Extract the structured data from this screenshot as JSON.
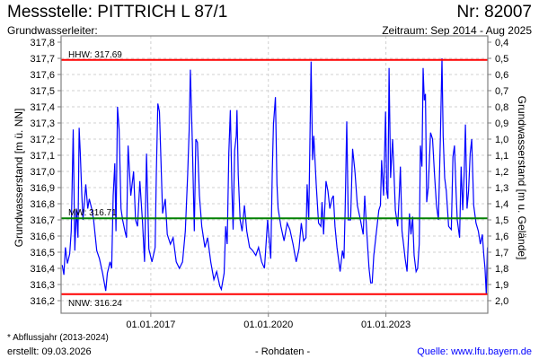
{
  "header": {
    "title": "Messstelle: PITTRICH L 87/1",
    "number": "Nr: 82007",
    "aquifer": "Grundwasserleiter:",
    "period": "Zeitraum: Sep 2014 - Aug 2025"
  },
  "footer": {
    "footnote": "* Abflussjahr (2013-2024)",
    "created": "erstellt:  09.03.2026",
    "raw_data": "- Rohdaten -",
    "source": "Quelle: www.lfu.bayern.de"
  },
  "colors": {
    "series": "#0000ff",
    "extreme": "#ff0000",
    "mean": "#008000",
    "grid": "#d0d0d0",
    "source_link": "#0000ff"
  },
  "chart_data": {
    "type": "line",
    "ylabel": "Grundwasserstand [m ü. NN]",
    "ylabel_right": "Grundwasserstand [m u. Gelände]",
    "ylim": [
      316.2,
      317.8
    ],
    "ylim_right": [
      0.4,
      2.0
    ],
    "xlim": [
      2014.71,
      2025.6
    ],
    "yticks": [
      "317,8",
      "317,7",
      "317,6",
      "317,5",
      "317,4",
      "317,3",
      "317,2",
      "317,1",
      "317,0",
      "316,9",
      "316,8",
      "316,7",
      "316,6",
      "316,5",
      "316,4",
      "316,3",
      "316,2"
    ],
    "yticks_right": [
      "0,4",
      "0,5",
      "0,6",
      "0,7",
      "0,8",
      "0,9",
      "1,0",
      "1,1",
      "1,2",
      "1,3",
      "1,4",
      "1,5",
      "1,6",
      "1,7",
      "1,8",
      "1,9",
      "2,0"
    ],
    "xticks": [
      {
        "x": 2017.0,
        "label": "01.01.2017"
      },
      {
        "x": 2020.0,
        "label": "01.01.2020"
      },
      {
        "x": 2023.0,
        "label": "01.01.2023"
      }
    ],
    "grid": true,
    "reference_lines": [
      {
        "name": "HHW",
        "label": "HHW: 317.69",
        "value": 317.69,
        "color": "#ff0000"
      },
      {
        "name": "MW",
        "label": "MW: 316.71",
        "value": 316.71,
        "color": "#008000"
      },
      {
        "name": "NNW",
        "label": "NNW: 316.24",
        "value": 316.24,
        "color": "#ff0000"
      }
    ],
    "series": [
      {
        "name": "Grundwasserstand",
        "points": [
          [
            2014.74,
            316.42
          ],
          [
            2014.78,
            316.36
          ],
          [
            2014.82,
            316.53
          ],
          [
            2014.87,
            316.43
          ],
          [
            2014.93,
            316.49
          ],
          [
            2014.97,
            316.63
          ],
          [
            2015.02,
            317.26
          ],
          [
            2015.06,
            316.51
          ],
          [
            2015.1,
            316.77
          ],
          [
            2015.14,
            316.59
          ],
          [
            2015.17,
            317.27
          ],
          [
            2015.2,
            317.11
          ],
          [
            2015.24,
            316.85
          ],
          [
            2015.27,
            316.7
          ],
          [
            2015.34,
            316.92
          ],
          [
            2015.39,
            316.77
          ],
          [
            2015.43,
            316.83
          ],
          [
            2015.49,
            316.77
          ],
          [
            2015.54,
            316.7
          ],
          [
            2015.62,
            316.51
          ],
          [
            2015.69,
            316.46
          ],
          [
            2015.77,
            316.37
          ],
          [
            2015.85,
            316.26
          ],
          [
            2015.89,
            316.37
          ],
          [
            2015.96,
            316.44
          ],
          [
            2016.0,
            316.4
          ],
          [
            2016.04,
            316.85
          ],
          [
            2016.08,
            317.05
          ],
          [
            2016.11,
            316.63
          ],
          [
            2016.15,
            317.4
          ],
          [
            2016.19,
            317.26
          ],
          [
            2016.24,
            316.77
          ],
          [
            2016.28,
            316.7
          ],
          [
            2016.34,
            316.63
          ],
          [
            2016.38,
            316.59
          ],
          [
            2016.42,
            317.16
          ],
          [
            2016.49,
            316.85
          ],
          [
            2016.56,
            317.0
          ],
          [
            2016.61,
            316.7
          ],
          [
            2016.66,
            316.66
          ],
          [
            2016.72,
            316.94
          ],
          [
            2016.79,
            316.68
          ],
          [
            2016.84,
            316.44
          ],
          [
            2016.89,
            317.11
          ],
          [
            2016.95,
            316.52
          ],
          [
            2017.03,
            316.44
          ],
          [
            2017.11,
            316.53
          ],
          [
            2017.14,
            316.98
          ],
          [
            2017.18,
            317.42
          ],
          [
            2017.22,
            317.37
          ],
          [
            2017.3,
            316.74
          ],
          [
            2017.37,
            316.83
          ],
          [
            2017.42,
            316.61
          ],
          [
            2017.5,
            316.55
          ],
          [
            2017.57,
            316.59
          ],
          [
            2017.65,
            316.44
          ],
          [
            2017.73,
            316.4
          ],
          [
            2017.81,
            316.44
          ],
          [
            2017.88,
            316.63
          ],
          [
            2017.94,
            316.98
          ],
          [
            2017.98,
            317.26
          ],
          [
            2018.01,
            317.63
          ],
          [
            2018.06,
            317.18
          ],
          [
            2018.11,
            316.63
          ],
          [
            2018.15,
            317.2
          ],
          [
            2018.19,
            317.18
          ],
          [
            2018.24,
            316.85
          ],
          [
            2018.3,
            316.66
          ],
          [
            2018.38,
            316.53
          ],
          [
            2018.45,
            316.59
          ],
          [
            2018.53,
            316.44
          ],
          [
            2018.61,
            316.33
          ],
          [
            2018.68,
            316.38
          ],
          [
            2018.76,
            316.29
          ],
          [
            2018.8,
            316.27
          ],
          [
            2018.87,
            316.37
          ],
          [
            2018.91,
            316.66
          ],
          [
            2018.95,
            316.55
          ],
          [
            2018.99,
            317.11
          ],
          [
            2019.03,
            317.38
          ],
          [
            2019.07,
            316.88
          ],
          [
            2019.1,
            316.64
          ],
          [
            2019.14,
            317.13
          ],
          [
            2019.18,
            317.22
          ],
          [
            2019.2,
            317.38
          ],
          [
            2019.23,
            316.98
          ],
          [
            2019.28,
            316.7
          ],
          [
            2019.33,
            316.63
          ],
          [
            2019.39,
            316.79
          ],
          [
            2019.45,
            316.63
          ],
          [
            2019.52,
            316.53
          ],
          [
            2019.6,
            316.51
          ],
          [
            2019.68,
            316.48
          ],
          [
            2019.75,
            316.53
          ],
          [
            2019.83,
            316.44
          ],
          [
            2019.9,
            316.4
          ],
          [
            2019.98,
            316.7
          ],
          [
            2020.06,
            316.46
          ],
          [
            2020.1,
            317.0
          ],
          [
            2020.13,
            317.29
          ],
          [
            2020.18,
            317.46
          ],
          [
            2020.22,
            316.92
          ],
          [
            2020.25,
            316.77
          ],
          [
            2020.32,
            316.66
          ],
          [
            2020.4,
            316.57
          ],
          [
            2020.48,
            316.68
          ],
          [
            2020.55,
            316.64
          ],
          [
            2020.63,
            316.55
          ],
          [
            2020.71,
            316.44
          ],
          [
            2020.78,
            316.52
          ],
          [
            2020.84,
            316.68
          ],
          [
            2020.9,
            316.57
          ],
          [
            2020.96,
            316.59
          ],
          [
            2020.99,
            316.92
          ],
          [
            2021.03,
            316.7
          ],
          [
            2021.09,
            317.68
          ],
          [
            2021.13,
            317.07
          ],
          [
            2021.16,
            317.22
          ],
          [
            2021.22,
            316.92
          ],
          [
            2021.28,
            316.68
          ],
          [
            2021.34,
            316.66
          ],
          [
            2021.37,
            316.81
          ],
          [
            2021.41,
            316.61
          ],
          [
            2021.47,
            316.94
          ],
          [
            2021.52,
            316.88
          ],
          [
            2021.57,
            316.77
          ],
          [
            2021.62,
            316.83
          ],
          [
            2021.66,
            316.85
          ],
          [
            2021.7,
            316.66
          ],
          [
            2021.75,
            316.53
          ],
          [
            2021.83,
            316.38
          ],
          [
            2021.89,
            316.51
          ],
          [
            2021.93,
            316.46
          ],
          [
            2021.96,
            316.76
          ],
          [
            2022.0,
            317.31
          ],
          [
            2022.04,
            316.7
          ],
          [
            2022.1,
            316.7
          ],
          [
            2022.15,
            317.14
          ],
          [
            2022.21,
            317.0
          ],
          [
            2022.27,
            316.79
          ],
          [
            2022.35,
            316.7
          ],
          [
            2022.42,
            316.61
          ],
          [
            2022.46,
            316.85
          ],
          [
            2022.51,
            316.63
          ],
          [
            2022.57,
            316.4
          ],
          [
            2022.61,
            316.31
          ],
          [
            2022.65,
            316.31
          ],
          [
            2022.69,
            316.48
          ],
          [
            2022.76,
            316.63
          ],
          [
            2022.82,
            316.76
          ],
          [
            2022.86,
            316.79
          ],
          [
            2022.89,
            317.07
          ],
          [
            2022.94,
            316.85
          ],
          [
            2022.99,
            317.37
          ],
          [
            2023.02,
            316.88
          ],
          [
            2023.05,
            316.83
          ],
          [
            2023.08,
            317.64
          ],
          [
            2023.12,
            316.96
          ],
          [
            2023.17,
            317.2
          ],
          [
            2023.2,
            317.03
          ],
          [
            2023.24,
            316.76
          ],
          [
            2023.3,
            316.66
          ],
          [
            2023.34,
            316.85
          ],
          [
            2023.37,
            317.03
          ],
          [
            2023.41,
            316.63
          ],
          [
            2023.45,
            316.55
          ],
          [
            2023.49,
            316.46
          ],
          [
            2023.54,
            316.38
          ],
          [
            2023.6,
            316.74
          ],
          [
            2023.64,
            316.61
          ],
          [
            2023.68,
            316.72
          ],
          [
            2023.72,
            316.48
          ],
          [
            2023.77,
            316.38
          ],
          [
            2023.81,
            316.4
          ],
          [
            2023.85,
            316.55
          ],
          [
            2023.88,
            317.16
          ],
          [
            2023.92,
            317.03
          ],
          [
            2023.95,
            317.64
          ],
          [
            2023.98,
            317.44
          ],
          [
            2024.01,
            317.48
          ],
          [
            2024.04,
            316.81
          ],
          [
            2024.08,
            316.9
          ],
          [
            2024.14,
            317.24
          ],
          [
            2024.19,
            317.2
          ],
          [
            2024.24,
            316.98
          ],
          [
            2024.29,
            316.79
          ],
          [
            2024.34,
            316.7
          ],
          [
            2024.39,
            317.2
          ],
          [
            2024.43,
            317.7
          ],
          [
            2024.46,
            317.22
          ],
          [
            2024.5,
            316.96
          ],
          [
            2024.54,
            316.88
          ],
          [
            2024.6,
            316.66
          ],
          [
            2024.67,
            316.64
          ],
          [
            2024.71,
            317.09
          ],
          [
            2024.75,
            317.16
          ],
          [
            2024.79,
            316.87
          ],
          [
            2024.82,
            316.7
          ],
          [
            2024.88,
            316.59
          ],
          [
            2024.92,
            317.03
          ],
          [
            2024.96,
            316.76
          ],
          [
            2025.0,
            317.0
          ],
          [
            2025.03,
            317.29
          ],
          [
            2025.07,
            316.77
          ],
          [
            2025.11,
            316.88
          ],
          [
            2025.15,
            317.11
          ],
          [
            2025.19,
            317.2
          ],
          [
            2025.24,
            316.79
          ],
          [
            2025.3,
            316.68
          ],
          [
            2025.36,
            316.63
          ],
          [
            2025.41,
            316.55
          ],
          [
            2025.46,
            316.61
          ],
          [
            2025.5,
            316.48
          ],
          [
            2025.53,
            316.4
          ],
          [
            2025.56,
            316.24
          ],
          [
            2025.59,
            316.53
          ]
        ]
      }
    ]
  }
}
